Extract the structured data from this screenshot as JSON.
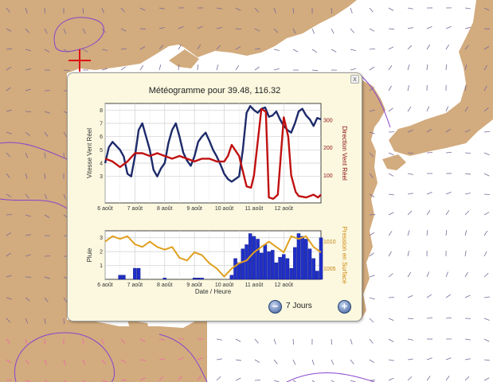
{
  "map": {
    "land_color": "#d2ab7e",
    "sea_color": "#ffffff",
    "marker_color": "#dd1111"
  },
  "popup": {
    "title": "Météogramme pour 39.48, 116.32",
    "close_label": "x",
    "zoom_label": "7 Jours",
    "zoom_out_label": "−",
    "zoom_in_label": "+"
  },
  "chart_data": [
    {
      "type": "line",
      "x_ticks": [
        "6 août",
        "7 août",
        "8 août",
        "9 août",
        "10 août",
        "11 août",
        "12 août"
      ],
      "ylabel": "Vitesse Vent Réel",
      "ylim": [
        1,
        8.5
      ],
      "y_ticks": [
        3,
        4,
        5,
        6,
        7,
        8
      ],
      "y2label": "Direction Vent Réel",
      "y2lim": [
        0,
        360
      ],
      "y2_ticks": [
        100,
        200,
        300
      ],
      "grid": true,
      "series": [
        {
          "axis": "left",
          "color": "#1d2a6a",
          "x": [
            0,
            0.25,
            0.5,
            0.75,
            1,
            1.25,
            1.5,
            1.75,
            2,
            2.25,
            2.5,
            2.75,
            3,
            3.25,
            3.5,
            3.75,
            4,
            4.25,
            4.5,
            4.75,
            5,
            5.25,
            5.5,
            5.75,
            6,
            6.25,
            6.5,
            6.75,
            7,
            7.25,
            7.5,
            7.75,
            8,
            8.25,
            8.5,
            8.75,
            9,
            9.25,
            9.5,
            9.75,
            10,
            10.25,
            10.5,
            10.75,
            11,
            11.25,
            11.5,
            11.75,
            12,
            12.25,
            12.5,
            12.75,
            13,
            13.25,
            13.5,
            13.75,
            14,
            14.25,
            14.5
          ],
          "values": [
            4,
            5.2,
            5.6,
            5.3,
            5,
            4.5,
            3.2,
            3,
            4.5,
            6.5,
            7,
            6,
            5,
            3.5,
            3,
            3.6,
            4,
            5.5,
            6.5,
            7,
            6,
            4.8,
            4.2,
            3.8,
            4.5,
            5.6,
            6,
            6.3,
            5.7,
            5,
            4.5,
            3.9,
            3.2,
            2.8,
            2.6,
            2.8,
            3,
            5,
            7.8,
            8.3,
            8,
            7.8,
            8.1,
            8.2,
            7.5,
            7.6,
            7.9,
            7.3,
            6.8,
            6.5,
            6.3,
            7,
            7.9,
            8.1,
            7.6,
            7.3,
            6.8,
            7.4,
            7.3
          ]
        },
        {
          "axis": "right",
          "color": "#c01010",
          "x": [
            0,
            0.5,
            1,
            1.5,
            2,
            2.5,
            3,
            3.5,
            4,
            4.5,
            5,
            5.5,
            6,
            6.5,
            7,
            7.5,
            8,
            8.25,
            8.5,
            9,
            9.5,
            9.8,
            10,
            10.5,
            10.8,
            11,
            11.3,
            11.6,
            12,
            12.3,
            12.5,
            12.8,
            13,
            13.5,
            14,
            14.3,
            14.5
          ],
          "values": [
            160,
            150,
            130,
            150,
            180,
            180,
            170,
            180,
            170,
            160,
            170,
            160,
            150,
            160,
            160,
            150,
            150,
            170,
            210,
            170,
            60,
            55,
            100,
            340,
            330,
            20,
            15,
            30,
            310,
            240,
            100,
            40,
            25,
            20,
            30,
            20,
            30
          ]
        }
      ]
    },
    {
      "type": "bar",
      "x_ticks": [
        "6 août",
        "7 août",
        "8 août",
        "9 août",
        "10 août",
        "11 août",
        "12 août"
      ],
      "xlabel": "Date / Heure",
      "ylabel": "Pluie",
      "ylim": [
        0,
        3.5
      ],
      "y_ticks": [
        1,
        2,
        3
      ],
      "y2label": "Pression en Surface",
      "y2lim": [
        1003,
        1012
      ],
      "y2_ticks": [
        1005,
        1010
      ],
      "grid": true,
      "series": [
        {
          "axis": "left",
          "type": "bar",
          "color": "#1f2fc8",
          "x": [
            1,
            1.25,
            2,
            2.25,
            4,
            6,
            6.25,
            6.5,
            8.5,
            8.75,
            9,
            9.25,
            9.5,
            9.75,
            10,
            10.25,
            10.5,
            10.75,
            11,
            11.25,
            11.5,
            11.75,
            12,
            12.25,
            12.5,
            12.75,
            13,
            13.25,
            13.5,
            13.75,
            14,
            14.25,
            14.5
          ],
          "values": [
            0.3,
            0.3,
            0.8,
            0.8,
            0.1,
            0.1,
            0.1,
            0.1,
            0.3,
            1.5,
            1.2,
            2.2,
            2.5,
            3.3,
            3.1,
            2.9,
            1.9,
            2.5,
            2,
            2.1,
            1.2,
            1.6,
            1.8,
            1.5,
            0.8,
            2.3,
            3.3,
            3.1,
            2.9,
            2.2,
            1.5,
            0.6,
            3
          ]
        },
        {
          "axis": "right",
          "type": "line",
          "color": "#e0a020",
          "x": [
            0,
            0.5,
            1,
            1.5,
            2,
            2.5,
            3,
            3.5,
            4,
            4.5,
            5,
            5.5,
            6,
            6.5,
            7,
            7.5,
            8,
            8.5,
            9,
            9.5,
            10,
            10.5,
            11,
            11.5,
            12,
            12.5,
            13,
            13.5,
            14,
            14.5
          ],
          "values": [
            1010,
            1011,
            1010.5,
            1011,
            1009.5,
            1009,
            1010,
            1009,
            1008.5,
            1009,
            1007,
            1006.5,
            1008,
            1007.5,
            1006,
            1005,
            1003.5,
            1005,
            1006,
            1006.5,
            1008,
            1009,
            1010,
            1009,
            1008,
            1011,
            1010.5,
            1011,
            1009,
            1008
          ]
        }
      ]
    }
  ]
}
